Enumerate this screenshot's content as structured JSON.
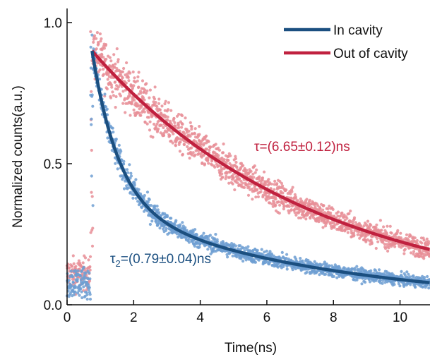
{
  "chart_data": {
    "type": "scatter",
    "title": "",
    "xlabel": "Time(ns)",
    "ylabel": "Normalized counts(a.u.)",
    "xlim": [
      0,
      10.9
    ],
    "ylim": [
      0,
      1.03
    ],
    "xticks": [
      "0",
      "2",
      "4",
      "6",
      "8",
      "10"
    ],
    "yticks": [
      "0.0",
      "0.5",
      "1.0"
    ],
    "grid": false,
    "legend_position": "top-right",
    "series": [
      {
        "name": "In cavity",
        "color": "#1b4f80",
        "scatter_color": "#6e9fd2",
        "fit": {
          "model": "exponential-decay",
          "t0": 0.75,
          "A": 0.9,
          "tau1": 0.79,
          "tau2": 6.65,
          "fast_fraction": 0.6
        }
      },
      {
        "name": "Out of cavity",
        "color": "#c0213f",
        "scatter_color": "#e88e96",
        "fit": {
          "model": "exponential-decay",
          "t0": 0.75,
          "A": 0.9,
          "tau": 6.65
        }
      }
    ],
    "annotations": [
      {
        "text": "τ=(6.65±0.12)ns",
        "color": "#c0213f"
      },
      {
        "text": "τ",
        "sub": "2",
        "rest": "=(0.79±0.04)ns",
        "color": "#1b4f80"
      }
    ]
  }
}
